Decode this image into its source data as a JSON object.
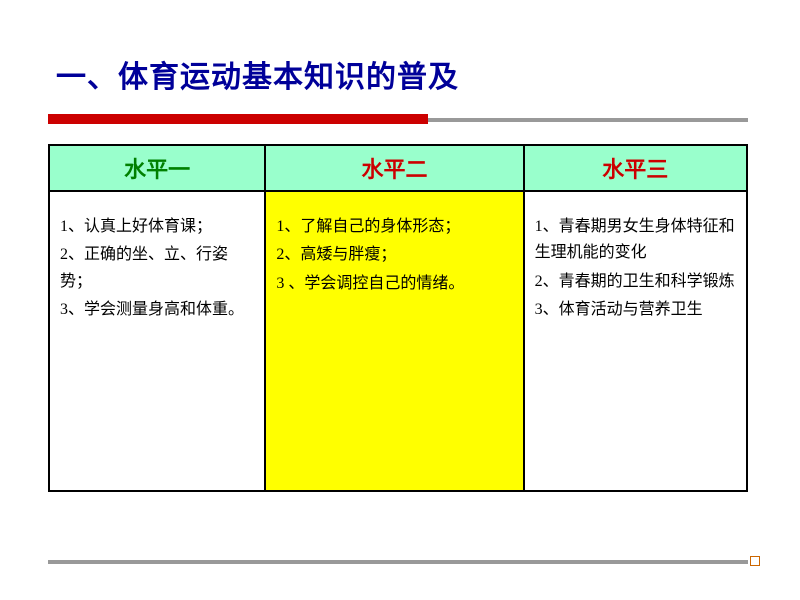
{
  "title": "一、体育运动基本知识的普及",
  "colors": {
    "title_color": "#000099",
    "underline_red": "#cc0000",
    "underline_gray": "#999999",
    "header_bg": "#99ffcc",
    "highlight_bg": "#ffff00",
    "border": "#000000",
    "th1_color": "#008000",
    "th2_color": "#cc0000",
    "th3_color": "#cc0000",
    "footer_square_border": "#cc6600"
  },
  "table": {
    "headers": [
      "水平一",
      "水平二",
      "水平三"
    ],
    "column_widths": [
      "31%",
      "37%",
      "32%"
    ],
    "rows": [
      {
        "col1": [
          "1、认真上好体育课；",
          "2、正确的坐、立、行姿势；",
          "3、学会测量身高和体重。"
        ],
        "col2": [
          "1、了解自己的身体形态；",
          "2、高矮与胖瘦；",
          "3 、学会调控自己的情绪。"
        ],
        "col3": [
          "1、青春期男女生身体特征和生理机能的变化",
          "2、青春期的卫生和科学锻炼",
          "3、体育活动与营养卫生"
        ]
      }
    ]
  },
  "typography": {
    "title_fontsize": 30,
    "header_fontsize": 22,
    "cell_fontsize": 16
  }
}
